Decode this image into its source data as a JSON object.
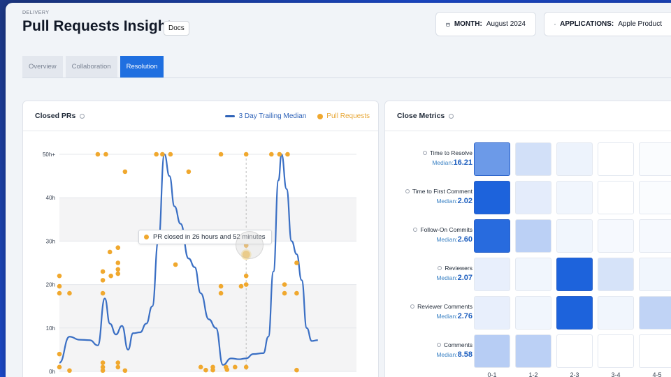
{
  "header": {
    "eyebrow": "DELIVERY",
    "title": "Pull Requests Insights",
    "docs_label": "Docs",
    "month_key": "MONTH:",
    "month_value": "August 2024",
    "apps_key": "APPLICATIONS:",
    "apps_value": "Apple Product"
  },
  "tabs": [
    {
      "label": "Overview",
      "active": false
    },
    {
      "label": "Collaboration",
      "active": false
    },
    {
      "label": "Resolution",
      "active": true
    }
  ],
  "closed_prs": {
    "title": "Closed PRs",
    "legend_median": "3 Day Trailing Median",
    "legend_prs": "Pull Requests",
    "tooltip": "PR closed in 26 hours and 52 minutes"
  },
  "close_metrics": {
    "title": "Close Metrics",
    "median_label": "Median:",
    "columns": [
      "0-1",
      "1-2",
      "2-3",
      "3-4",
      "4-5"
    ],
    "rows": [
      {
        "label": "Time to Resolve",
        "median": "16.21",
        "intensity": [
          0.65,
          0.2,
          0.08,
          0.0,
          0.02
        ]
      },
      {
        "label": "Time to First Comment",
        "median": "2.02",
        "intensity": [
          1.0,
          0.12,
          0.06,
          0.0,
          0.02
        ]
      },
      {
        "label": "Follow-On Commits",
        "median": "2.60",
        "intensity": [
          0.95,
          0.3,
          0.06,
          0.04,
          0.04
        ]
      },
      {
        "label": "Reviewers",
        "median": "2.07",
        "intensity": [
          0.1,
          0.06,
          1.0,
          0.18,
          0.06
        ]
      },
      {
        "label": "Reviewer Comments",
        "median": "2.76",
        "intensity": [
          0.1,
          0.06,
          1.0,
          0.06,
          0.28
        ]
      },
      {
        "label": "Comments",
        "median": "8.58",
        "intensity": [
          0.32,
          0.3,
          0.0,
          0.0,
          0.0
        ]
      }
    ]
  },
  "colors": {
    "accent": "#1f6fe0",
    "median_line": "#3a6fc4",
    "pr_dot": "#f0a82e"
  },
  "chart_data": {
    "type": "scatter",
    "ylabel": "",
    "xlabel": "",
    "y_ticks": [
      "0h",
      "10h",
      "20h",
      "30h",
      "40h",
      "50h+"
    ],
    "ylim": [
      0,
      50
    ],
    "xlim": [
      0,
      30
    ],
    "series": [
      {
        "name": "3 Day Trailing Median",
        "kind": "line",
        "points": [
          [
            0,
            2
          ],
          [
            1,
            8
          ],
          [
            2,
            7.3
          ],
          [
            3,
            7.2
          ],
          [
            3.8,
            6
          ],
          [
            4.5,
            16.8
          ],
          [
            5,
            11
          ],
          [
            5.6,
            8.5
          ],
          [
            6.2,
            10.5
          ],
          [
            6.8,
            5
          ],
          [
            7.3,
            8.8
          ],
          [
            8,
            9
          ],
          [
            8.6,
            11
          ],
          [
            9.2,
            15
          ],
          [
            9.8,
            30
          ],
          [
            10.4,
            50
          ],
          [
            10.9,
            45
          ],
          [
            11.4,
            38
          ],
          [
            12,
            34
          ],
          [
            12.8,
            26
          ],
          [
            13.4,
            24
          ],
          [
            14,
            18
          ],
          [
            14.8,
            12
          ],
          [
            15.5,
            10
          ],
          [
            16.2,
            1.5
          ],
          [
            17,
            3
          ],
          [
            17.8,
            2.8
          ],
          [
            18.5,
            3
          ],
          [
            19.2,
            4
          ],
          [
            20.2,
            4.2
          ],
          [
            20.7,
            8
          ],
          [
            21.2,
            23
          ],
          [
            21.7,
            44
          ],
          [
            22,
            50
          ],
          [
            22.5,
            42
          ],
          [
            23,
            30
          ],
          [
            23.5,
            27
          ],
          [
            24,
            21
          ],
          [
            24.5,
            10
          ],
          [
            25,
            7
          ],
          [
            25.6,
            7.2
          ]
        ]
      },
      {
        "name": "Pull Requests",
        "kind": "scatter",
        "points": [
          [
            0,
            22
          ],
          [
            0,
            19.6
          ],
          [
            0,
            18
          ],
          [
            0,
            4
          ],
          [
            0,
            1
          ],
          [
            1,
            18
          ],
          [
            1,
            0.2
          ],
          [
            3.8,
            50
          ],
          [
            4.6,
            50
          ],
          [
            4.3,
            23
          ],
          [
            4.3,
            21
          ],
          [
            4.3,
            18
          ],
          [
            4.3,
            2
          ],
          [
            4.3,
            1
          ],
          [
            4.3,
            0.2
          ],
          [
            5,
            27.5
          ],
          [
            5.1,
            22
          ],
          [
            5.8,
            28.5
          ],
          [
            5.8,
            25
          ],
          [
            5.8,
            23.5
          ],
          [
            5.8,
            22.5
          ],
          [
            5.8,
            2
          ],
          [
            5.8,
            1
          ],
          [
            6.5,
            46
          ],
          [
            6.5,
            0.2
          ],
          [
            9.6,
            50
          ],
          [
            10.2,
            50
          ],
          [
            11,
            50
          ],
          [
            11.5,
            24.6
          ],
          [
            12.8,
            46
          ],
          [
            14,
            1
          ],
          [
            14.5,
            0.3
          ],
          [
            15.2,
            1
          ],
          [
            15.2,
            0.3
          ],
          [
            16,
            50
          ],
          [
            16,
            19.6
          ],
          [
            16,
            18
          ],
          [
            16.5,
            1
          ],
          [
            16.6,
            0.4
          ],
          [
            17.4,
            1
          ],
          [
            18,
            19.6
          ],
          [
            18.5,
            50
          ],
          [
            18.5,
            29
          ],
          [
            18.5,
            22
          ],
          [
            18.5,
            20
          ],
          [
            18.5,
            1
          ],
          [
            21,
            50
          ],
          [
            21.8,
            50
          ],
          [
            22.6,
            50
          ],
          [
            22.3,
            20
          ],
          [
            22.3,
            18
          ],
          [
            23.5,
            25
          ],
          [
            23.5,
            18
          ],
          [
            23.5,
            0.3
          ]
        ]
      }
    ],
    "highlight_point": [
      18.5,
      26.9
    ],
    "legend": "top-right"
  }
}
